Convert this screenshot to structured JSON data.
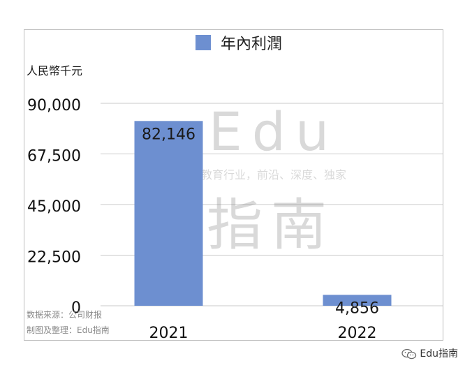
{
  "chart_data": {
    "type": "bar",
    "categories": [
      "2021",
      "2022"
    ],
    "series": [
      {
        "name": "年內利潤",
        "values": [
          82146,
          4856
        ],
        "color": "#6d8fd0"
      }
    ],
    "data_labels": [
      "82,146",
      "4,856"
    ],
    "ylabel": "人民幣千元",
    "ylim": [
      0,
      90000
    ],
    "yticks": [
      0,
      22500,
      45000,
      67500,
      90000
    ],
    "ytick_labels": [
      "0",
      "22,500",
      "45,000",
      "67,500",
      "90,000"
    ],
    "grid": true,
    "legend_position": "top"
  },
  "watermark": {
    "brand": "Edu",
    "name_cn": "指南",
    "slogan": "教育行业，前沿、深度、独家"
  },
  "source_note": {
    "line1": "数据来源：公司财报",
    "line2": "制图及整理：Edu指南"
  },
  "footer_brand": "Edu指南"
}
